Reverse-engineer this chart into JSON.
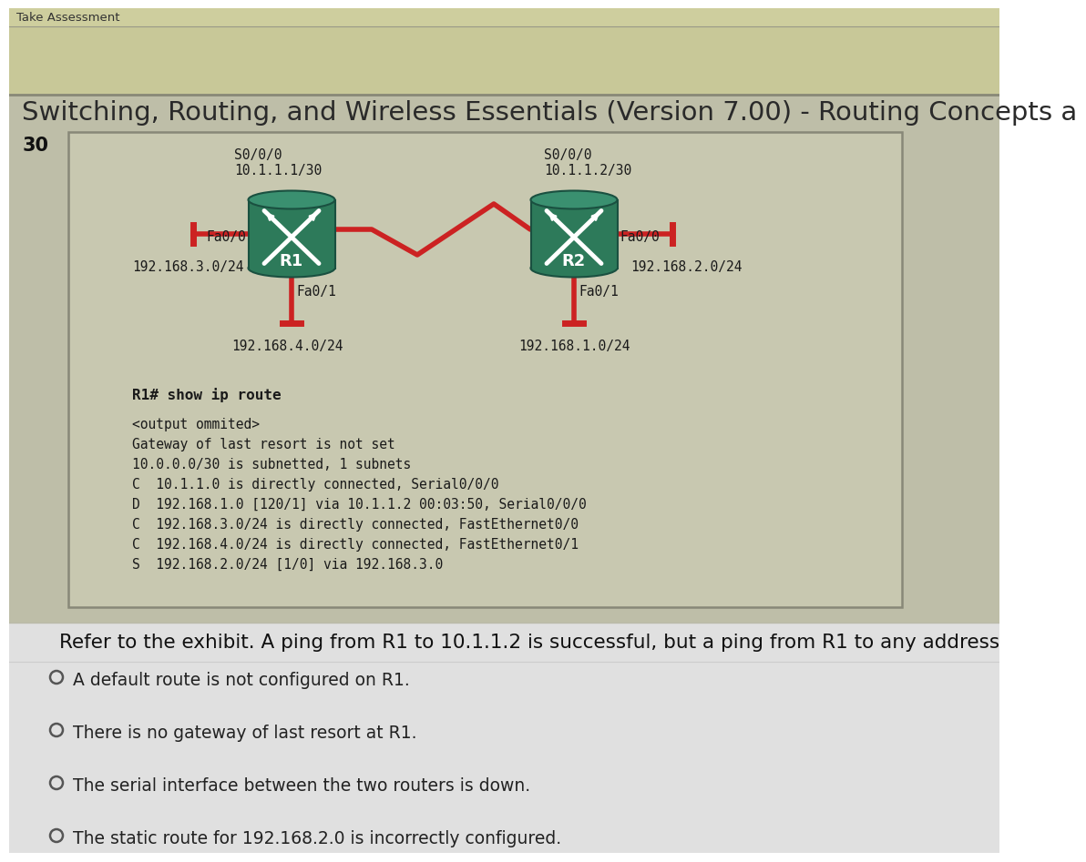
{
  "bg_top_color": "#cece9e",
  "bg_header_color": "#c8c898",
  "bg_main_color": "#bebea8",
  "bg_bottom_color": "#e0e0e0",
  "header_small": "Take Assessment",
  "header_large": "Switching, Routing, and Wireless Essentials (Version 7.00) - Routing Concepts a",
  "question_number": "30",
  "box_bg": "#c8c8b0",
  "r1_label": "R1",
  "r2_label": "R2",
  "r1_serial_label": "S0/0/0\n10.1.1.1/30",
  "r2_serial_label": "S0/0/0\n10.1.1.2/30",
  "r1_left_iface": "Fa0/0",
  "r2_right_iface": "Fa0/0",
  "r1_bottom_iface": "Fa0/1",
  "r2_bottom_iface": "Fa0/1",
  "r1_left_net": "192.168.3.0/24",
  "r1_bottom_net": "192.168.4.0/24",
  "r2_right_net": "192.168.2.0/24",
  "r2_bottom_net": "192.168.1.0/24",
  "show_route_cmd": "R1# show ip route",
  "route_lines": [
    "<output ommited>",
    "Gateway of last resort is not set",
    "10.0.0.0/30 is subnetted, 1 subnets",
    "C  10.1.1.0 is directly connected, Serial0/0/0",
    "D  192.168.1.0 [120/1] via 10.1.1.2 00:03:50, Serial0/0/0",
    "C  192.168.3.0/24 is directly connected, FastEthernet0/0",
    "C  192.168.4.0/24 is directly connected, FastEthernet0/1",
    "S  192.168.2.0/24 [1/0] via 192.168.3.0"
  ],
  "question_text": "Refer to the exhibit. A ping from R1 to 10.1.1.2 is successful, but a ping from R1 to any address",
  "choices": [
    "A default route is not configured on R1.",
    "There is no gateway of last resort at R1.",
    "The serial interface between the two routers is down.",
    "The static route for 192.168.2.0 is incorrectly configured."
  ],
  "router_color": "#2d7a5a",
  "router_top_color": "#3a9070",
  "router_dark": "#1a5040",
  "cable_color": "#cc2222",
  "iface_line_color": "#cc2222",
  "label_color": "#1a1a1a",
  "header_text_color": "#2a2a2a",
  "choice_text_color": "#222222",
  "radio_color": "#555555",
  "box_border_color": "#888878",
  "sep_line_color": "#aaaaaa"
}
